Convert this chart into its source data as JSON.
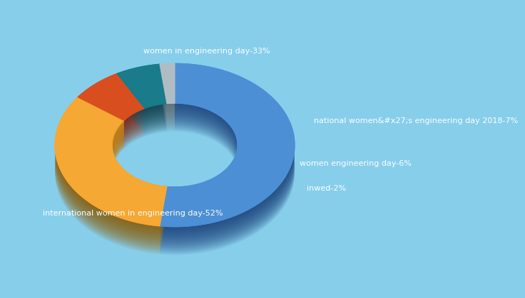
{
  "labels_display": [
    "international women in engineering day-52%",
    "women in engineering day-33%",
    "national women&#x27;s engineering day 2018-7%",
    "women engineering day-6%",
    "inwed-2%"
  ],
  "values": [
    52,
    33,
    7,
    6,
    2
  ],
  "colors": [
    "#4d8fd4",
    "#f5a833",
    "#d94e1f",
    "#1a7b8a",
    "#b0bcc4"
  ],
  "shadow_colors": [
    "#1a3f7a",
    "#8a5a00",
    "#7a1800",
    "#0a3540",
    "#606870"
  ],
  "background_color": "#87ceeb",
  "text_color": "#ffffff"
}
